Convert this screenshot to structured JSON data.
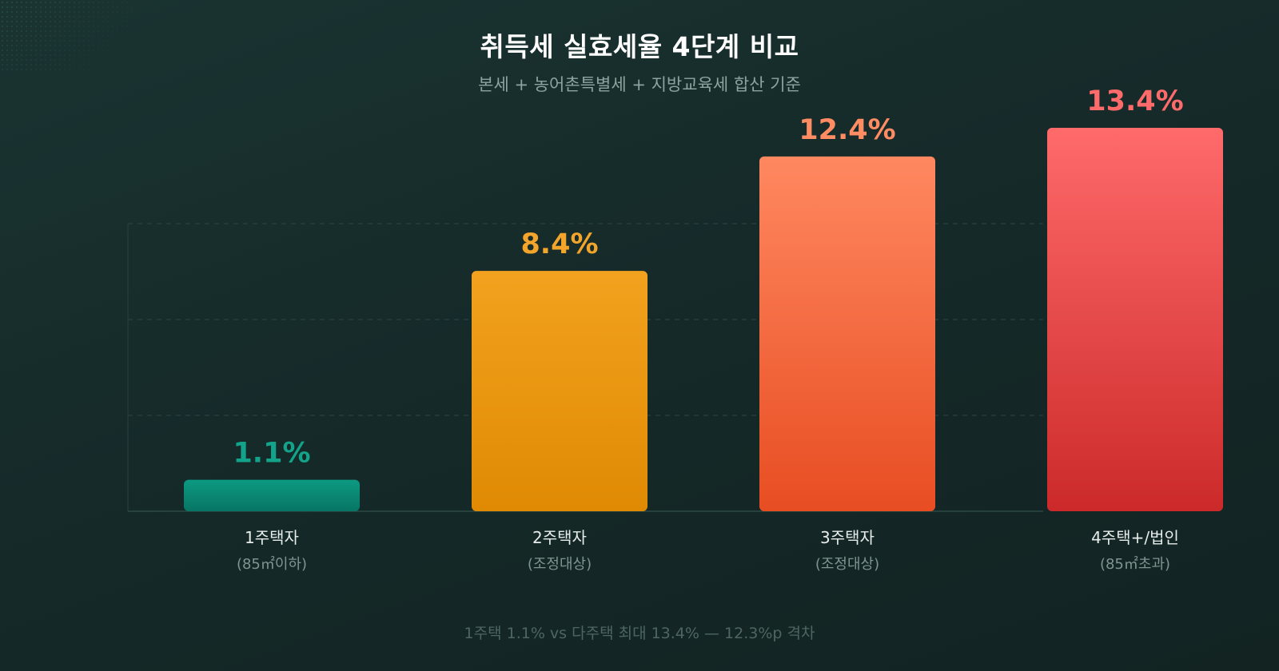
{
  "header": {
    "title": "취득세 실효세율 4단계 비교",
    "subtitle": "본세 + 농어촌특별세 + 지방교육세 합산 기준"
  },
  "footer": {
    "note": "1주택 1.1% vs 다주택 최대 13.4% — 12.3%p 격차"
  },
  "chart_data": {
    "type": "bar",
    "title": "취득세 실효세율 4단계 비교",
    "subtitle": "본세 + 농어촌특별세 + 지방교육세 합산 기준",
    "categories": [
      "1주택자",
      "2주택자",
      "3주택자",
      "4주택+/법인"
    ],
    "category_notes": [
      "(85㎡이하)",
      "(조정대상)",
      "(조정대상)",
      "(85㎡초과)"
    ],
    "values": [
      1.1,
      8.4,
      12.4,
      13.4
    ],
    "value_labels": [
      "1.1%",
      "8.4%",
      "12.4%",
      "13.4%"
    ],
    "ylim": [
      0,
      13.4
    ],
    "grid": true,
    "legend": "none",
    "colors": [
      {
        "top": "#0d9a82",
        "bottom": "#077564",
        "label": "#12a38a"
      },
      {
        "top": "#f2a21e",
        "bottom": "#e08a04",
        "label": "#f3a42a"
      },
      {
        "top": "#ff8860",
        "bottom": "#e84d22",
        "label": "#ff8c62"
      },
      {
        "top": "#ff6a6a",
        "bottom": "#cc2a2a",
        "label": "#ff6a6a"
      }
    ]
  }
}
